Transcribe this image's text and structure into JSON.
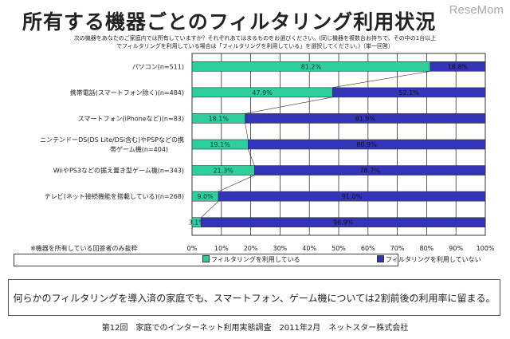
{
  "header": {
    "title": "所有する機器ごとのフィルタリング利用状況",
    "logo": "ReseMom",
    "question_line1": "次の機器をあなたのご家庭内では所有していますか？それぞれあてはまるものをお選びください。(同じ機器を複数台お持ちで、その中の1台以上",
    "question_line2": "でフィルタリングを利用している場合は「フィルタリングを利用している」を選択してください。)（単一回答）"
  },
  "note": "※機器を所有している回答者のみ抜粋",
  "summary": "何らかのフィルタリングを導入済の家庭でも、スマートフォン、ゲーム機については2割前後の利用率に留まる。",
  "footer": "第12回　家庭でのインターネット利用実態調査　2011年2月　ネットスター株式会社",
  "colors": {
    "using": "#2ecf9c",
    "not_using": "#3434b8"
  },
  "chart_data": {
    "type": "bar",
    "stacked": true,
    "orientation": "horizontal",
    "categories": [
      "パソコン(n=511)",
      "携帯電話(スマートフォン除く)(n=484)",
      "スマートフォン(iPhoneなど)(n=83)",
      "ニンテンドーDS(DS Lite/DSi含む)やPSPなどの携帯ゲーム機(n=404)",
      "WiiやPS3などの据え置き型ゲーム機(n=343)",
      "テレビ(ネット接続機能を搭載している)(n=268)",
      ""
    ],
    "category_lines": [
      [
        "パソコン(n=511)"
      ],
      [
        "携帯電話(スマートフォン除く)(n=484)"
      ],
      [
        "スマートフォン(iPhoneなど)(n=83)"
      ],
      [
        "ニンテンドーDS(DS Lite/DSi含む)やPSPなどの携",
        "帯ゲーム機(n=404)"
      ],
      [
        "WiiやPS3などの据え置き型ゲーム機(n=343)"
      ],
      [
        "テレビ(ネット接続機能を搭載している)(n=268)"
      ],
      []
    ],
    "series": [
      {
        "name": "フィルタリングを利用している",
        "values": [
          81.2,
          47.9,
          18.1,
          19.1,
          21.3,
          9.0,
          3.1
        ],
        "labels": [
          "81.2%",
          "47.9%",
          "18.1%",
          "19.1%",
          "21.3%",
          "9.0%",
          "3.1%"
        ]
      },
      {
        "name": "フィルタリングを利用していない",
        "values": [
          18.8,
          52.1,
          81.9,
          80.9,
          78.7,
          91.0,
          96.9
        ],
        "labels": [
          "18.8%",
          "52.1%",
          "81.9%",
          "80.9%",
          "78.7%",
          "91.0%",
          "96.9%"
        ]
      }
    ],
    "xlim": [
      0,
      100
    ],
    "xticks": [
      "0%",
      "10%",
      "20%",
      "30%",
      "40%",
      "50%",
      "60%",
      "70%",
      "80%",
      "90%",
      "100%"
    ],
    "grid": true,
    "legend": "bottom"
  }
}
